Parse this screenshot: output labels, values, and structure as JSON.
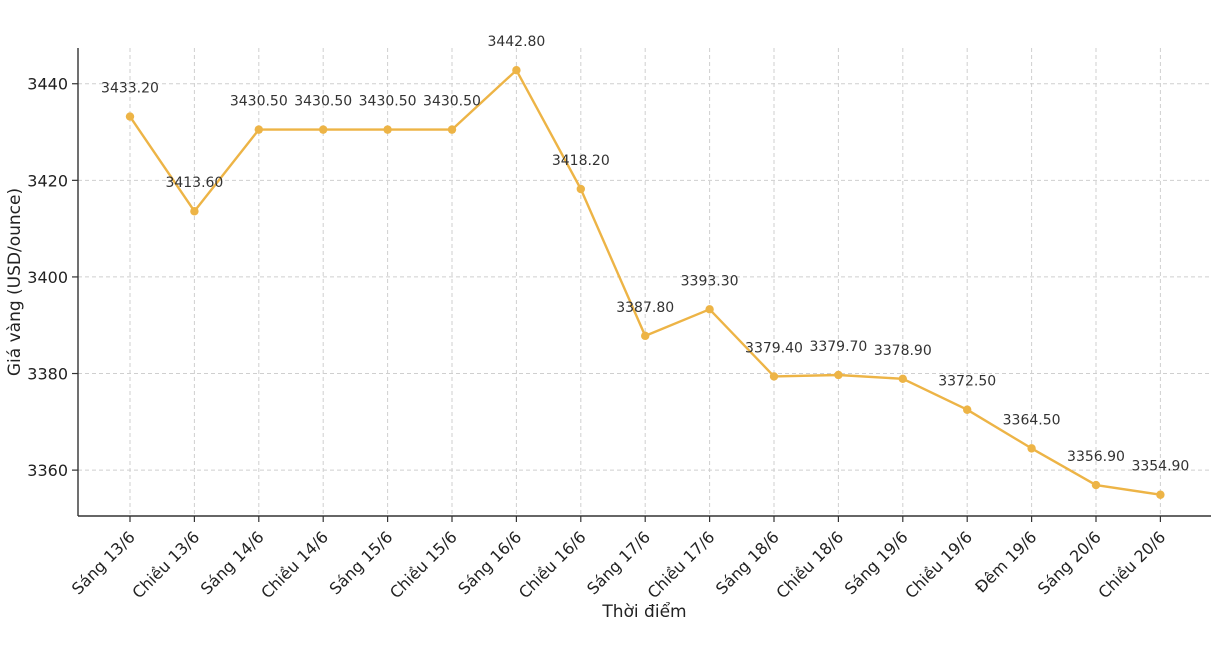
{
  "chart_data": {
    "type": "line",
    "title": "",
    "xlabel": "Thời điểm",
    "ylabel": "Giá vàng (USD/ounce)",
    "ylim": [
      3350.5,
      3447.4
    ],
    "yticks": [
      3360,
      3380,
      3400,
      3420,
      3440
    ],
    "grid": true,
    "line_color": "#EDB446",
    "categories": [
      "Sáng 13/6",
      "Chiều 13/6",
      "Sáng 14/6",
      "Chiều 14/6",
      "Sáng 15/6",
      "Chiều 15/6",
      "Sáng 16/6",
      "Chiều 16/6",
      "Sáng 17/6",
      "Chiều 17/6",
      "Sáng 18/6",
      "Chiều 18/6",
      "Sáng 19/6",
      "Chiều 19/6",
      "Đêm 19/6",
      "Sáng 20/6",
      "Chiều 20/6"
    ],
    "values": [
      3433.2,
      3413.6,
      3430.5,
      3430.5,
      3430.5,
      3430.5,
      3442.8,
      3418.2,
      3387.8,
      3393.3,
      3379.4,
      3379.7,
      3378.9,
      3372.5,
      3364.5,
      3356.9,
      3354.9
    ],
    "data_labels": [
      "3433.20",
      "3413.60",
      "3430.50",
      "3430.50",
      "3430.50",
      "3430.50",
      "3442.80",
      "3418.20",
      "3387.80",
      "3393.30",
      "3379.40",
      "3379.70",
      "3378.90",
      "3372.50",
      "3364.50",
      "3356.90",
      "3354.90"
    ]
  }
}
